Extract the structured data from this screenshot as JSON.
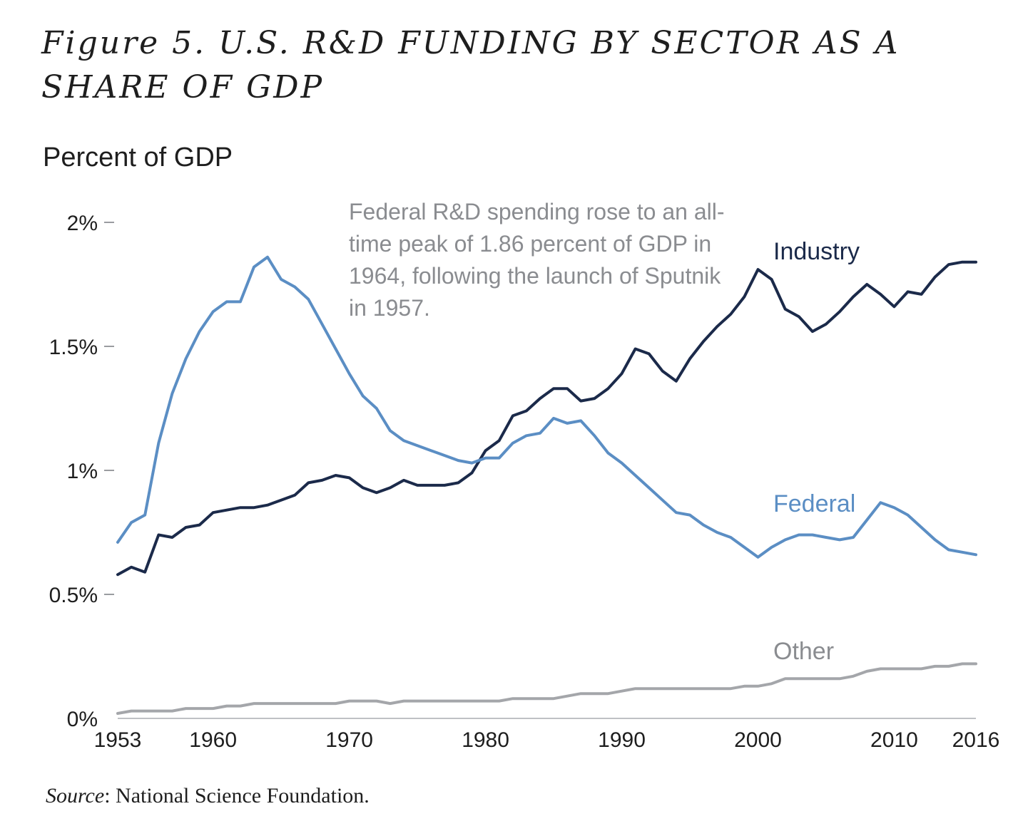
{
  "title": "Figure 5. U.S. R&D FUNDING BY SECTOR AS A SHARE OF GDP",
  "source_prefix": "Source",
  "source_text": ": National Science Foundation.",
  "chart_data": {
    "type": "line",
    "title": "Figure 5. U.S. R&D FUNDING BY SECTOR AS A SHARE OF GDP",
    "ylabel": "Percent of GDP",
    "xlabel": "",
    "xlim": [
      1953,
      2016
    ],
    "ylim": [
      0,
      2
    ],
    "yticks": [
      {
        "value": 0,
        "label": "0%"
      },
      {
        "value": 0.5,
        "label": "0.5%"
      },
      {
        "value": 1,
        "label": "1%"
      },
      {
        "value": 1.5,
        "label": "1.5%"
      },
      {
        "value": 2,
        "label": "2%"
      }
    ],
    "xticks": [
      {
        "value": 1953,
        "label": "1953"
      },
      {
        "value": 1960,
        "label": "1960"
      },
      {
        "value": 1970,
        "label": "1970"
      },
      {
        "value": 1980,
        "label": "1980"
      },
      {
        "value": 1990,
        "label": "1990"
      },
      {
        "value": 2000,
        "label": "2000"
      },
      {
        "value": 2010,
        "label": "2010"
      },
      {
        "value": 2016,
        "label": "2016"
      }
    ],
    "grid": false,
    "annotation": "Federal R&D spending rose to an all-time peak of 1.86 percent of GDP in 1964, following the launch of Sputnik in 1957.",
    "x": [
      1953,
      1954,
      1955,
      1956,
      1957,
      1958,
      1959,
      1960,
      1961,
      1962,
      1963,
      1964,
      1965,
      1966,
      1967,
      1968,
      1969,
      1970,
      1971,
      1972,
      1973,
      1974,
      1975,
      1976,
      1977,
      1978,
      1979,
      1980,
      1981,
      1982,
      1983,
      1984,
      1985,
      1986,
      1987,
      1988,
      1989,
      1990,
      1991,
      1992,
      1993,
      1994,
      1995,
      1996,
      1997,
      1998,
      1999,
      2000,
      2001,
      2002,
      2003,
      2004,
      2005,
      2006,
      2007,
      2008,
      2009,
      2010,
      2011,
      2012,
      2013,
      2014,
      2015,
      2016
    ],
    "series": [
      {
        "name": "Industry",
        "color": "#1b2a4a",
        "values": [
          0.58,
          0.61,
          0.59,
          0.74,
          0.73,
          0.77,
          0.78,
          0.83,
          0.84,
          0.85,
          0.85,
          0.86,
          0.88,
          0.9,
          0.95,
          0.96,
          0.98,
          0.97,
          0.93,
          0.91,
          0.93,
          0.96,
          0.94,
          0.94,
          0.94,
          0.95,
          0.99,
          1.08,
          1.12,
          1.22,
          1.24,
          1.29,
          1.33,
          1.33,
          1.28,
          1.29,
          1.33,
          1.39,
          1.49,
          1.47,
          1.4,
          1.36,
          1.45,
          1.52,
          1.58,
          1.63,
          1.7,
          1.81,
          1.77,
          1.65,
          1.62,
          1.56,
          1.59,
          1.64,
          1.7,
          1.75,
          1.71,
          1.66,
          1.72,
          1.71,
          1.78,
          1.83,
          1.84,
          1.84
        ]
      },
      {
        "name": "Federal",
        "color": "#5b8ec4",
        "values": [
          0.71,
          0.79,
          0.82,
          1.11,
          1.31,
          1.45,
          1.56,
          1.64,
          1.68,
          1.68,
          1.82,
          1.86,
          1.77,
          1.74,
          1.69,
          1.59,
          1.49,
          1.39,
          1.3,
          1.25,
          1.16,
          1.12,
          1.1,
          1.08,
          1.06,
          1.04,
          1.03,
          1.05,
          1.05,
          1.11,
          1.14,
          1.15,
          1.21,
          1.19,
          1.2,
          1.14,
          1.07,
          1.03,
          0.98,
          0.93,
          0.88,
          0.83,
          0.82,
          0.78,
          0.75,
          0.73,
          0.69,
          0.65,
          0.69,
          0.72,
          0.74,
          0.74,
          0.73,
          0.72,
          0.73,
          0.8,
          0.87,
          0.85,
          0.82,
          0.77,
          0.72,
          0.68,
          0.67,
          0.66
        ]
      },
      {
        "name": "Other",
        "color": "#a4a6aa",
        "values": [
          0.02,
          0.03,
          0.03,
          0.03,
          0.03,
          0.04,
          0.04,
          0.04,
          0.05,
          0.05,
          0.06,
          0.06,
          0.06,
          0.06,
          0.06,
          0.06,
          0.06,
          0.07,
          0.07,
          0.07,
          0.06,
          0.07,
          0.07,
          0.07,
          0.07,
          0.07,
          0.07,
          0.07,
          0.07,
          0.08,
          0.08,
          0.08,
          0.08,
          0.09,
          0.1,
          0.1,
          0.1,
          0.11,
          0.12,
          0.12,
          0.12,
          0.12,
          0.12,
          0.12,
          0.12,
          0.12,
          0.13,
          0.13,
          0.14,
          0.16,
          0.16,
          0.16,
          0.16,
          0.16,
          0.17,
          0.19,
          0.2,
          0.2,
          0.2,
          0.2,
          0.21,
          0.21,
          0.22,
          0.22
        ]
      }
    ]
  }
}
